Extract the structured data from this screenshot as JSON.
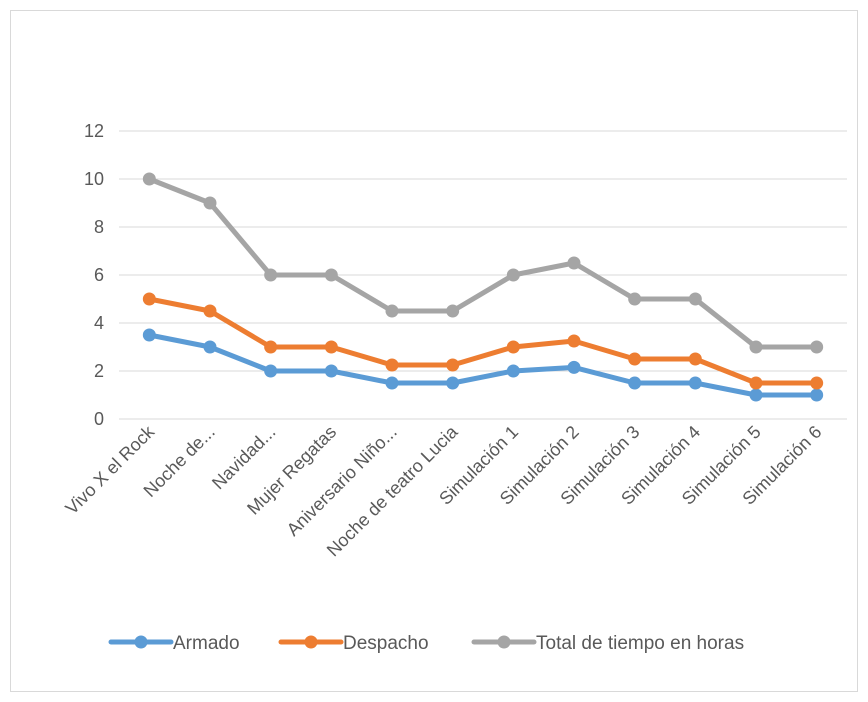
{
  "chart_data": {
    "type": "line",
    "title": "",
    "xlabel": "",
    "ylabel": "",
    "categories": [
      "Vivo X el Rock",
      "Noche de...",
      "Navidad...",
      "Mujer Regatas",
      "Aniversario Niño...",
      "Noche de teatro Lucia",
      "Simulación 1",
      "Simulación 2",
      "Simulación 3",
      "Simulación 4",
      "Simulación 5",
      "Simulación 6"
    ],
    "ylim": [
      0,
      12
    ],
    "yticks": [
      0,
      2,
      4,
      6,
      8,
      10,
      12
    ],
    "grid": true,
    "legend": "bottom",
    "series": [
      {
        "name": "Armado",
        "color": "#5b9bd5",
        "values": [
          3.5,
          3,
          2,
          2,
          1.5,
          1.5,
          2,
          2.15,
          1.5,
          1.5,
          1,
          1
        ]
      },
      {
        "name": "Despacho",
        "color": "#ed7d31",
        "values": [
          5,
          4.5,
          3,
          3,
          2.25,
          2.25,
          3,
          3.25,
          2.5,
          2.5,
          1.5,
          1.5
        ]
      },
      {
        "name": "Total de tiempo en horas",
        "color": "#a5a5a5",
        "values": [
          10,
          9,
          6,
          6,
          4.5,
          4.5,
          6,
          6.5,
          5,
          5,
          3,
          3
        ]
      }
    ]
  }
}
